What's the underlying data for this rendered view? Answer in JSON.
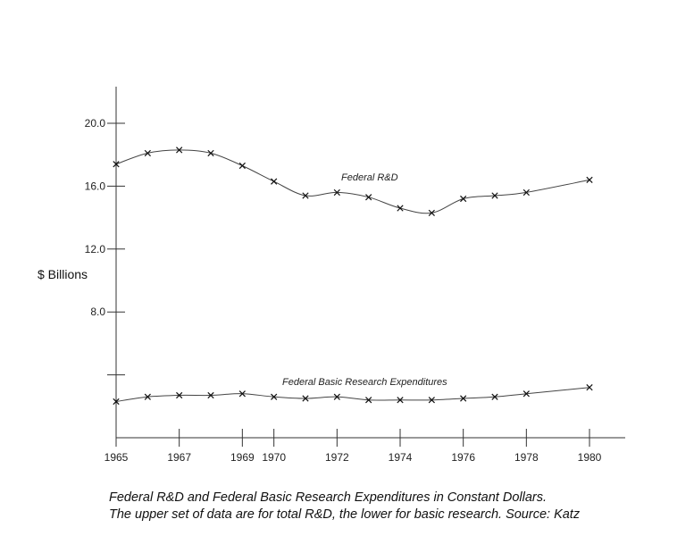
{
  "chart_data": {
    "type": "line",
    "ylabel": "$ Billions",
    "xlabel": "",
    "ylim": [
      0,
      22
    ],
    "xlim": [
      1965,
      1981
    ],
    "x_ticks": [
      "1965",
      "1967",
      "1969",
      "1970",
      "1972",
      "1974",
      "1976",
      "1978",
      "1980"
    ],
    "x_tick_values": [
      1965,
      1967,
      1969,
      1970,
      1972,
      1974,
      1976,
      1978,
      1980
    ],
    "y_ticks": [
      "20.0",
      "16.0",
      "12.0",
      "8.0",
      ""
    ],
    "y_tick_values": [
      20,
      16,
      12,
      8,
      4
    ],
    "grid": false,
    "marker": "x",
    "series": [
      {
        "name": "Federal R&D",
        "x": [
          1965,
          1966,
          1967,
          1968,
          1969,
          1970,
          1971,
          1972,
          1973,
          1974,
          1975,
          1976,
          1977,
          1978,
          1980
        ],
        "values": [
          17.4,
          18.1,
          18.3,
          18.1,
          17.3,
          16.3,
          15.4,
          15.6,
          15.3,
          14.6,
          14.3,
          15.2,
          15.4,
          15.6,
          16.4
        ]
      },
      {
        "name": "Federal Basic Research Expenditures",
        "x": [
          1965,
          1966,
          1967,
          1968,
          1969,
          1970,
          1971,
          1972,
          1973,
          1974,
          1975,
          1976,
          1977,
          1978,
          1980
        ],
        "values": [
          2.3,
          2.6,
          2.7,
          2.7,
          2.8,
          2.6,
          2.5,
          2.6,
          2.4,
          2.4,
          2.4,
          2.5,
          2.6,
          2.8,
          3.2
        ]
      }
    ]
  },
  "caption": {
    "line1": "Federal R&D and Federal Basic Research Expenditures in Constant Dollars.",
    "line2": "The upper set of data are for total R&D, the lower for basic research. Source: Katz"
  }
}
